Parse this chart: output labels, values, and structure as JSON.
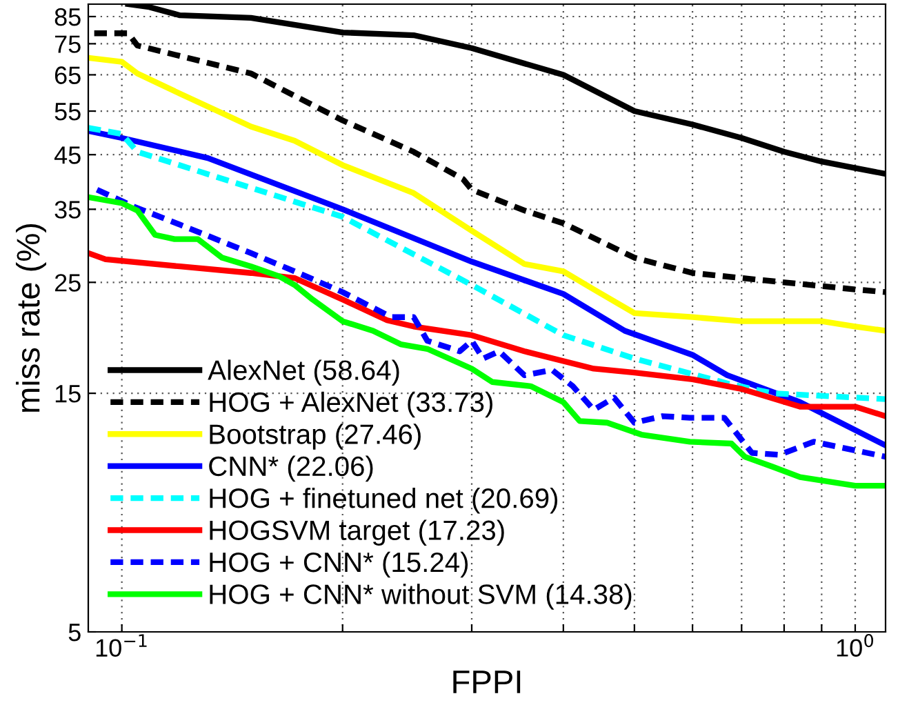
{
  "chart_data": {
    "type": "line",
    "xlabel": "FPPI",
    "ylabel": "miss rate (%)",
    "log": "xy",
    "xlim": [
      0.09,
      1.1
    ],
    "ylim": [
      5,
      90
    ],
    "xticks": [
      {
        "value": 0.1,
        "label": "10$^{−1}$"
      },
      {
        "value": 0.2,
        "label": null
      },
      {
        "value": 0.3,
        "label": null
      },
      {
        "value": 0.4,
        "label": null
      },
      {
        "value": 0.5,
        "label": null
      },
      {
        "value": 0.6,
        "label": null
      },
      {
        "value": 0.7,
        "label": null
      },
      {
        "value": 0.8,
        "label": null
      },
      {
        "value": 0.9,
        "label": null
      },
      {
        "value": 1,
        "label": "10$^{0}$"
      }
    ],
    "yticks": [
      5,
      15,
      25,
      35,
      45,
      55,
      65,
      75,
      85
    ],
    "grid": true,
    "legend": "bottom left",
    "marker": "none",
    "series": [
      {
        "name": "AlexNet (58.64)",
        "color": "#000000",
        "line_style": "solid",
        "x": [
          0.102,
          0.109,
          0.12,
          0.15,
          0.2,
          0.25,
          0.3,
          0.4,
          0.5,
          0.6,
          0.7,
          0.8,
          0.9,
          1.0,
          1.1
        ],
        "values": [
          90,
          88.8,
          85.5,
          84.5,
          79,
          78,
          73.5,
          65,
          55,
          51.7,
          48.6,
          45.6,
          43.6,
          42.3,
          41.2
        ]
      },
      {
        "name": "HOG + AlexNet (33.73)",
        "color": "#000000",
        "line_style": "dashed",
        "x": [
          0.0917,
          0.102,
          0.105,
          0.15,
          0.2,
          0.25,
          0.292,
          0.3,
          0.354,
          0.4,
          0.5,
          0.6,
          0.7,
          0.8,
          1.0,
          1.1
        ],
        "values": [
          78.7,
          78.7,
          74.4,
          65.4,
          52.7,
          45.6,
          40.2,
          38.3,
          34.8,
          32.8,
          28.0,
          26.1,
          25.5,
          25,
          24.2,
          23.9
        ]
      },
      {
        "name": "Bootstrap (27.46)",
        "color": "#ffff00",
        "line_style": "solid",
        "x": [
          0.09,
          0.1,
          0.105,
          0.12,
          0.137,
          0.15,
          0.172,
          0.2,
          0.25,
          0.3,
          0.354,
          0.4,
          0.44,
          0.5,
          0.6,
          0.7,
          0.9,
          1.0,
          1.1
        ],
        "values": [
          70.3,
          69.0,
          65.4,
          59.6,
          54.5,
          51.2,
          48.0,
          42.9,
          37.7,
          31.7,
          27.2,
          26.3,
          24.2,
          21.7,
          21.3,
          20.9,
          20.9,
          20.4,
          20
        ]
      },
      {
        "name": "CNN* (22.06)",
        "color": "#0000ff",
        "line_style": "solid",
        "x": [
          0.09,
          0.1,
          0.131,
          0.2,
          0.3,
          0.4,
          0.485,
          0.6,
          0.669,
          0.841,
          1.1
        ],
        "values": [
          50.2,
          48.6,
          44.3,
          35,
          27.5,
          23.7,
          20,
          17.9,
          16.3,
          14.4,
          11.8
        ]
      },
      {
        "name": "HOG + finetuned net (20.69)",
        "color": "#00ffff",
        "line_style": "dashed",
        "x": [
          0.09,
          0.1,
          0.105,
          0.2,
          0.3,
          0.4,
          0.5,
          0.669,
          0.771,
          1.1
        ],
        "values": [
          50.9,
          49.5,
          45.6,
          33.8,
          24.7,
          19.6,
          17.6,
          15.7,
          15,
          14.6
        ]
      },
      {
        "name": "HOGSVM target (17.23)",
        "color": "#ff0000",
        "line_style": "solid",
        "x": [
          0.09,
          0.095,
          0.12,
          0.15,
          0.172,
          0.2,
          0.23,
          0.25,
          0.3,
          0.354,
          0.44,
          0.5,
          0.6,
          0.7,
          0.841,
          1.0,
          1.1
        ],
        "values": [
          28.6,
          27.8,
          26.9,
          26.1,
          25.5,
          23.1,
          21.0,
          20.4,
          19.6,
          18.2,
          16.8,
          16.5,
          16.0,
          15.3,
          14.1,
          14.1,
          13.5
        ]
      },
      {
        "name": "HOG + CNN* (15.24)",
        "color": "#0000ff",
        "line_style": "dashed",
        "x": [
          0.0925,
          0.104,
          0.12,
          0.15,
          0.172,
          0.2,
          0.233,
          0.25,
          0.261,
          0.289,
          0.3,
          0.311,
          0.327,
          0.354,
          0.386,
          0.412,
          0.44,
          0.469,
          0.5,
          0.546,
          0.595,
          0.663,
          0.723,
          0.788,
          0.878,
          1.1
        ],
        "values": [
          38.3,
          35.4,
          32.6,
          28.6,
          26.3,
          23.9,
          21.3,
          21.3,
          19.1,
          18.2,
          19.1,
          17.6,
          18.2,
          16.3,
          16.7,
          15.5,
          13.9,
          14.7,
          13.1,
          13.5,
          13.4,
          13.4,
          11.4,
          11.3,
          12.0,
          11.2
        ]
      },
      {
        "name": "HOG + CNN* without SVM (14.38)",
        "color": "#00ff00",
        "line_style": "solid",
        "x": [
          0.09,
          0.1,
          0.105,
          0.111,
          0.118,
          0.127,
          0.137,
          0.15,
          0.164,
          0.172,
          0.182,
          0.2,
          0.22,
          0.24,
          0.261,
          0.3,
          0.32,
          0.361,
          0.4,
          0.421,
          0.459,
          0.511,
          0.595,
          0.678,
          0.707,
          0.771,
          0.841,
          1.0,
          1.1
        ],
        "values": [
          37.0,
          36.0,
          34.8,
          31.1,
          30.5,
          30.5,
          28.0,
          26.9,
          25.7,
          24.7,
          23.1,
          20.9,
          20,
          18.8,
          18.4,
          16.8,
          15.8,
          15.5,
          14.4,
          13.2,
          13.1,
          12.4,
          12.0,
          11.9,
          11.2,
          10.7,
          10.2,
          9.8,
          9.8
        ]
      }
    ]
  }
}
